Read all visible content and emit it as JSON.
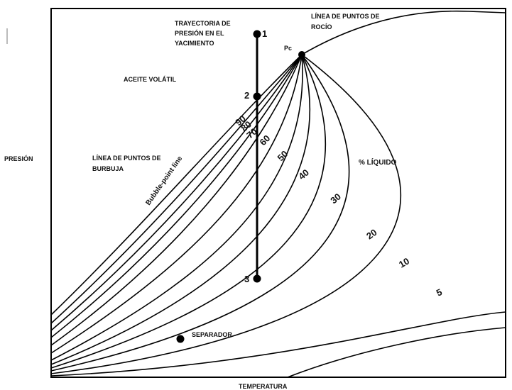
{
  "axes": {
    "x_label": "TEMPERATURA",
    "y_label": "PRESIÓN"
  },
  "labels": {
    "path_line1": "TRAYECTORIA DE",
    "path_line2": "PRESIÓN EN EL",
    "path_line3": "YACIMIENTO",
    "dew_line1": "LÍNEA DE PUNTOS DE",
    "dew_line2": "ROCÍO",
    "critical_point": "Pc",
    "volatile_oil": "ACEITE VOLÁTIL",
    "bubble_line1": "LÍNEA DE PUNTOS DE",
    "bubble_line2": "BURBUJA",
    "bubble_english": "Bubble-point line",
    "liquid_pct": "% LÍQUIDO",
    "separator": "SEPARADOR"
  },
  "path_points": [
    "1",
    "2",
    "3"
  ],
  "quality_lines": [
    "90",
    "80",
    "70",
    "60",
    "50",
    "40",
    "30",
    "20",
    "10",
    "5"
  ]
}
